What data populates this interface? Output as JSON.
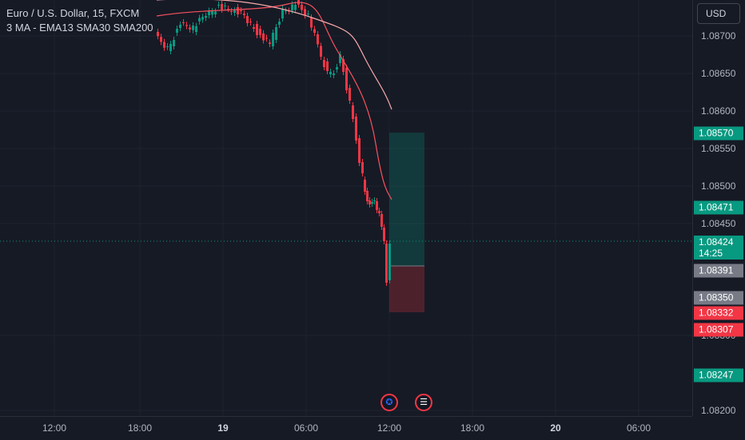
{
  "symbol_title": "Euro / U.S. Dollar, 15, FXCM",
  "indicator_title": "3 MA - EMA13 SMA30 SMA200",
  "currency_button": "USD",
  "price_ticks": [
    "1.08700",
    "1.08650",
    "1.08600",
    "1.08550",
    "1.08500",
    "1.08450",
    "1.08300",
    "1.08200"
  ],
  "time_ticks": [
    "12:00",
    "18:00",
    "19",
    "06:00",
    "12:00",
    "18:00",
    "20",
    "06:00"
  ],
  "price_tags": [
    {
      "label": "1.08570",
      "color": "#089981"
    },
    {
      "label": "1.08471",
      "color": "#089981"
    },
    {
      "label": "1.08424",
      "sub": "14:25",
      "color": "#089981"
    },
    {
      "label": "1.08391",
      "color": "#787b86"
    },
    {
      "label": "1.08350",
      "color": "#787b86"
    },
    {
      "label": "1.08332",
      "color": "#f23645"
    },
    {
      "label": "1.08307",
      "color": "#f23645"
    },
    {
      "label": "1.08247",
      "color": "#089981"
    }
  ],
  "events": [
    {
      "icon": "eu-flag-icon",
      "glyph": "✪"
    },
    {
      "icon": "us-flag-icon",
      "glyph": "☰"
    }
  ],
  "colors": {
    "background": "#161a25",
    "bull": "#089981",
    "bear": "#f23645",
    "ema13": "#f7525f",
    "sma30": "#f5a9a9",
    "grid": "#1f2330",
    "profit_zone": "rgba(8,153,129,0.25)",
    "loss_zone": "rgba(242,54,69,0.25)"
  },
  "chart_data": {
    "type": "candlestick",
    "ema13_label": "EMA13",
    "sma30_label": "SMA30",
    "y_range": [
      1.0819,
      1.0876
    ],
    "position_tool": {
      "target": 1.0857,
      "entry": 1.08391,
      "stop": 1.08307
    }
  }
}
